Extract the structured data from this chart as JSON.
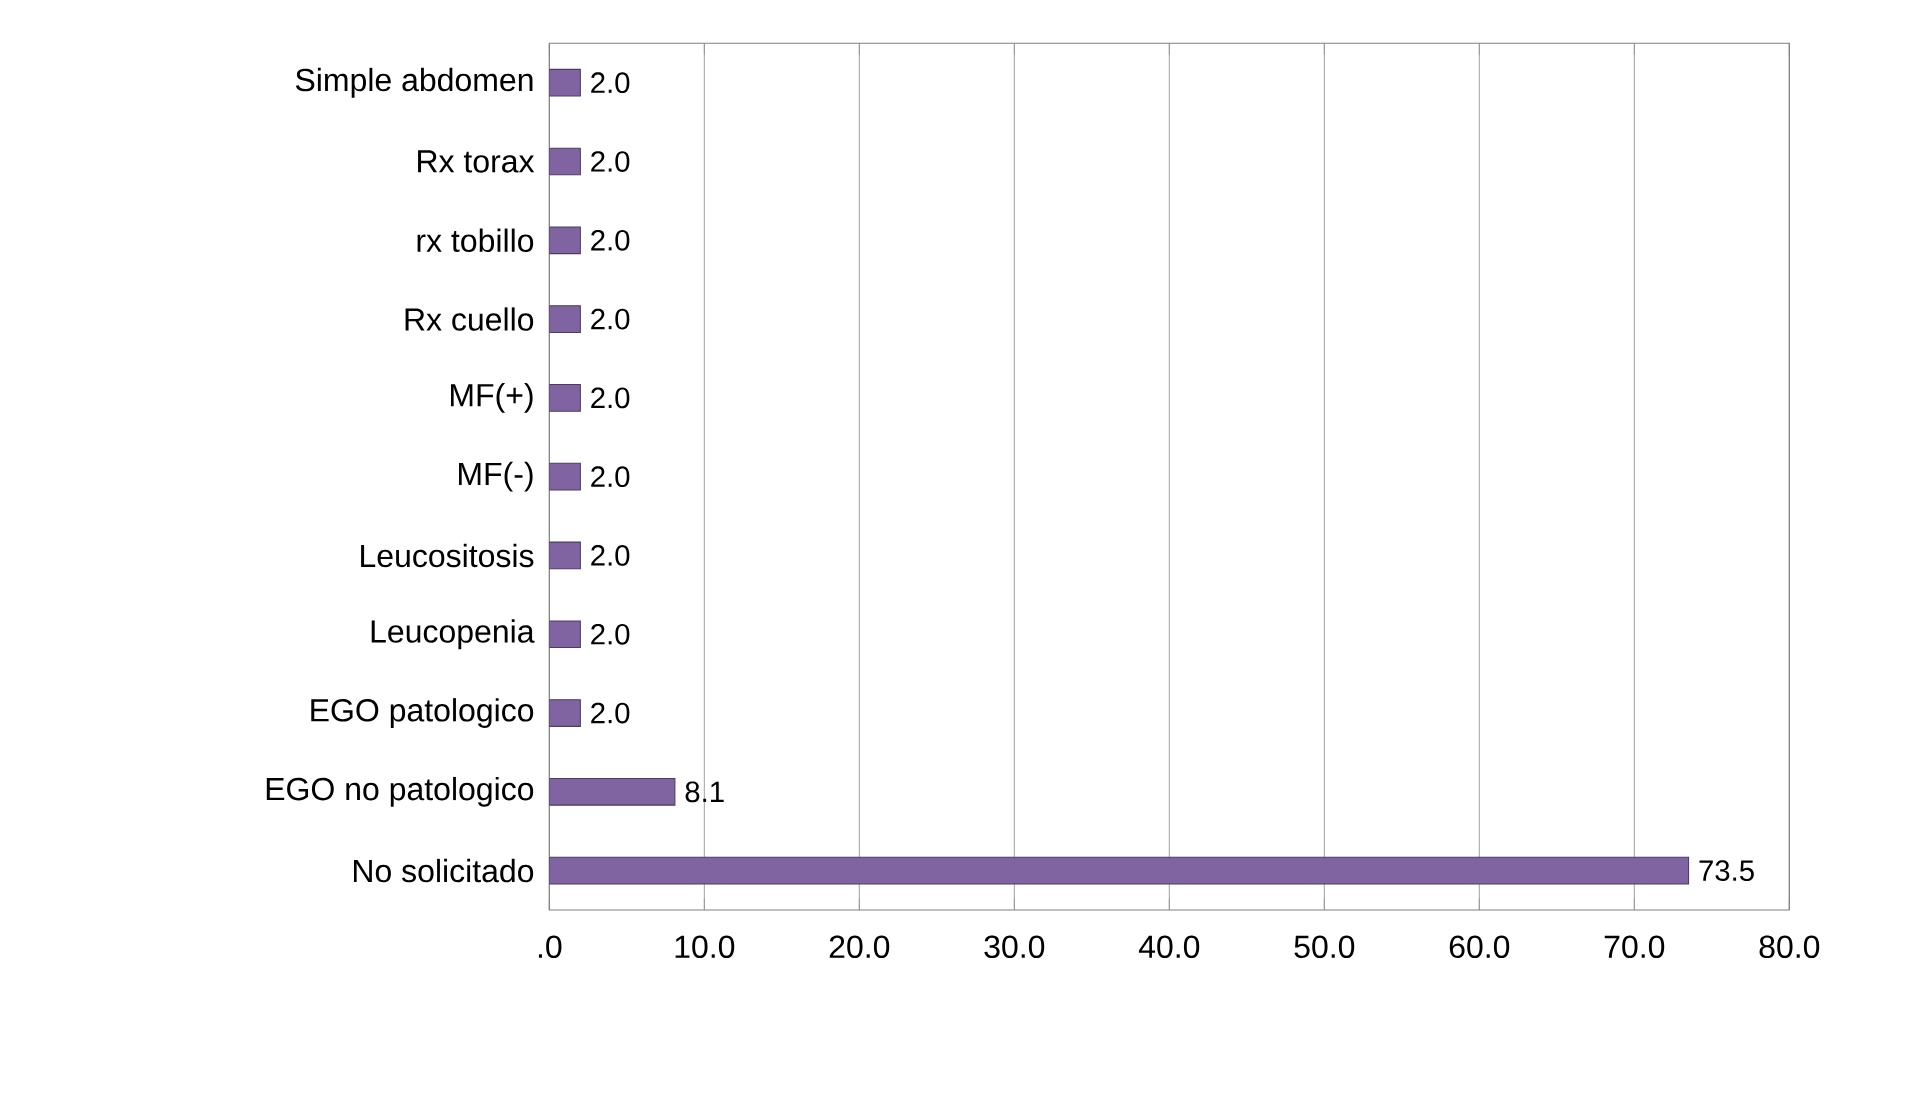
{
  "chart_data": {
    "type": "bar",
    "orientation": "horizontal",
    "categories": [
      "Simple abdomen",
      "Rx torax",
      "rx tobillo",
      "Rx cuello",
      "MF(+)",
      "MF(-)",
      "Leucositosis",
      "Leucopenia",
      "EGO patologico",
      "EGO no patologico",
      "No solicitado"
    ],
    "values": [
      2.0,
      2.0,
      2.0,
      2.0,
      2.0,
      2.0,
      2.0,
      2.0,
      2.0,
      8.1,
      73.5
    ],
    "value_labels": [
      "2.0",
      "2.0",
      "2.0",
      "2.0",
      "2.0",
      "2.0",
      "2.0",
      "2.0",
      "2.0",
      "8.1",
      "73.5"
    ],
    "color": "#8064a2",
    "xlim": [
      0,
      80
    ],
    "xticks": [
      {
        "value": 0,
        "label": ".0"
      },
      {
        "value": 10,
        "label": "10.0"
      },
      {
        "value": 20,
        "label": "20.0"
      },
      {
        "value": 30,
        "label": "30.0"
      },
      {
        "value": 40,
        "label": "40.0"
      },
      {
        "value": 50,
        "label": "50.0"
      },
      {
        "value": 60,
        "label": "60.0"
      },
      {
        "value": 70,
        "label": "70.0"
      },
      {
        "value": 80,
        "label": "80.0"
      }
    ],
    "grid": "x"
  }
}
